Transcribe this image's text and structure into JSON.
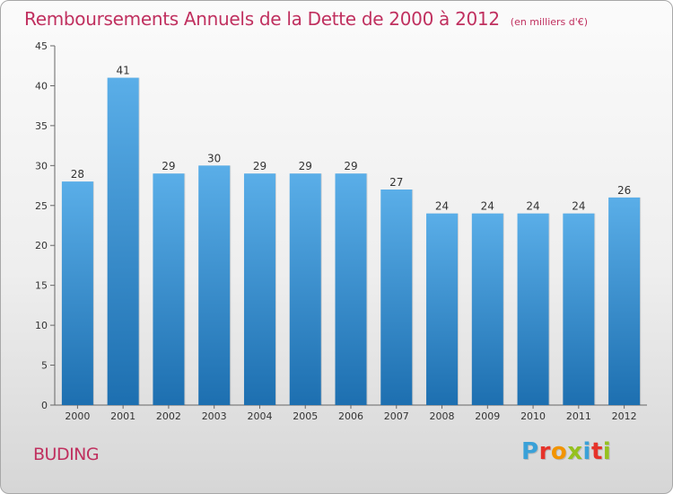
{
  "title": "Remboursements Annuels de la Dette de 2000 à 2012",
  "unit_note": "(en milliers d'€)",
  "commune": "BUDING",
  "brand": {
    "letters": [
      "P",
      "r",
      "o",
      "x",
      "i",
      "t",
      "i"
    ],
    "colors": [
      "#3aa1d8",
      "#e6332a",
      "#f29400",
      "#95c11f",
      "#3aa1d8",
      "#e6332a",
      "#95c11f"
    ]
  },
  "colors": {
    "title": "#c0305f",
    "bar_top": "#5aaee8",
    "bar_bottom": "#1d6fb0"
  },
  "chart_data": {
    "type": "bar",
    "categories": [
      "2000",
      "2001",
      "2002",
      "2003",
      "2004",
      "2005",
      "2006",
      "2007",
      "2008",
      "2009",
      "2010",
      "2011",
      "2012"
    ],
    "values": [
      28,
      41,
      29,
      30,
      29,
      29,
      29,
      27,
      24,
      24,
      24,
      24,
      26
    ],
    "ylim": [
      0,
      45
    ],
    "yticks": [
      0,
      5,
      10,
      15,
      20,
      25,
      30,
      35,
      40,
      45
    ],
    "grid": false,
    "xlabel": "",
    "ylabel": ""
  }
}
